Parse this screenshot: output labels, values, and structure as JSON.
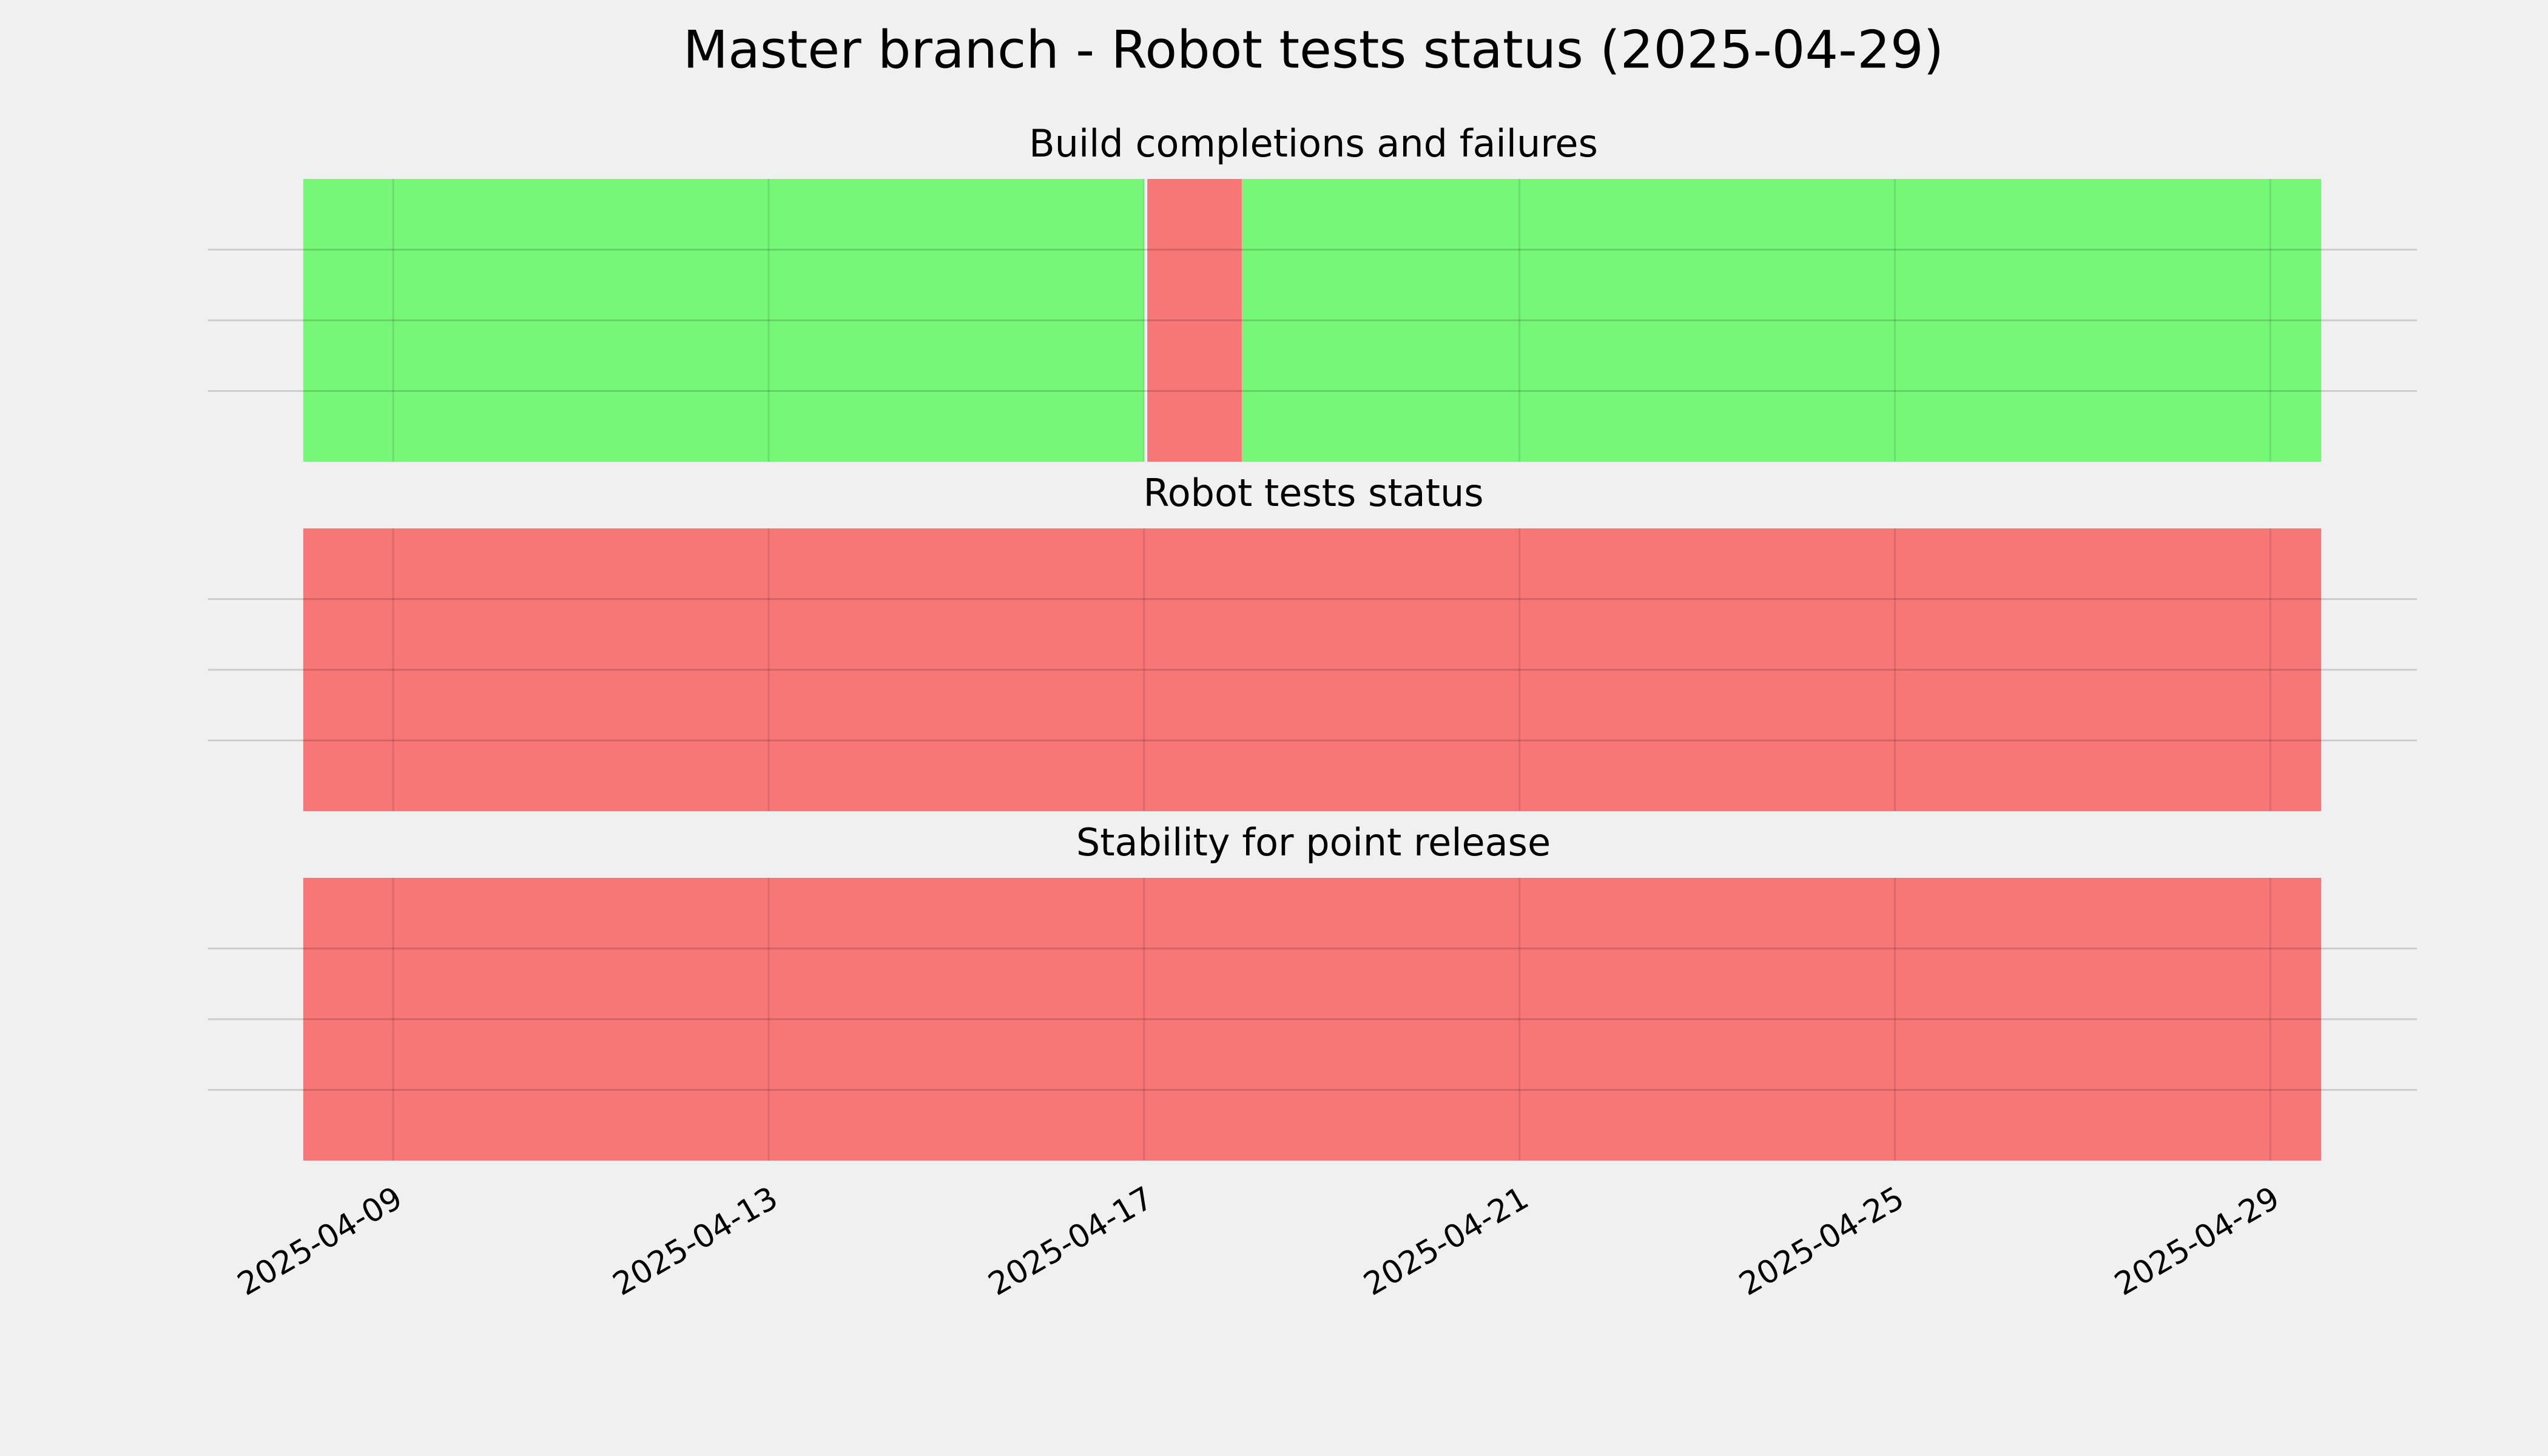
{
  "title": "Master branch - Robot tests status (2025-04-29)",
  "chart_data": [
    {
      "type": "timeline",
      "title": "Build completions and failures",
      "xlim": [
        "2025-04-07T00:40",
        "2025-04-30T13:30"
      ],
      "xticks": [
        "2025-04-09",
        "2025-04-13",
        "2025-04-17",
        "2025-04-21",
        "2025-04-25",
        "2025-04-29"
      ],
      "grid": true,
      "spans": [
        {
          "start": "2025-04-08T01:00",
          "end": "2025-04-17T00:00",
          "color": "#76f777"
        },
        {
          "start": "2025-04-17T00:50",
          "end": "2025-04-18T01:00",
          "color": "#f77676"
        },
        {
          "start": "2025-04-18T01:00",
          "end": "2025-04-29T13:00",
          "color": "#76f777"
        }
      ]
    },
    {
      "type": "timeline",
      "title": "Robot tests status",
      "xlim": [
        "2025-04-07T00:40",
        "2025-04-30T13:30"
      ],
      "xticks": [
        "2025-04-09",
        "2025-04-13",
        "2025-04-17",
        "2025-04-21",
        "2025-04-25",
        "2025-04-29"
      ],
      "grid": true,
      "spans": [
        {
          "start": "2025-04-08T01:00",
          "end": "2025-04-29T13:00",
          "color": "#f77676"
        }
      ]
    },
    {
      "type": "timeline",
      "title": "Stability for point release",
      "xlim": [
        "2025-04-07T00:40",
        "2025-04-30T13:30"
      ],
      "xticks": [
        "2025-04-09",
        "2025-04-13",
        "2025-04-17",
        "2025-04-21",
        "2025-04-25",
        "2025-04-29"
      ],
      "grid": true,
      "show_xtick_labels": true,
      "spans": [
        {
          "start": "2025-04-08T01:00",
          "end": "2025-04-29T13:00",
          "color": "#f77676"
        }
      ]
    }
  ]
}
